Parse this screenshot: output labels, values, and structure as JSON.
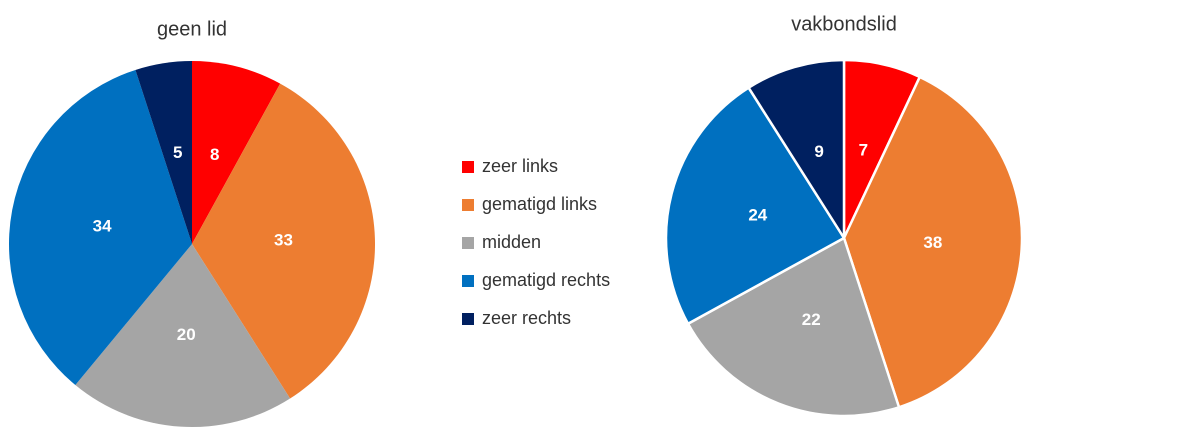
{
  "categories": [
    "zeer links",
    "gematigd links",
    "midden",
    "gematigd rechts",
    "zeer rechts"
  ],
  "colors": [
    "#ff0000",
    "#ed7d31",
    "#a5a5a5",
    "#0070c0",
    "#002060"
  ],
  "chart_data": [
    {
      "type": "pie",
      "title": "geen lid",
      "values": [
        8,
        33,
        20,
        34,
        5
      ]
    },
    {
      "type": "pie",
      "title": "vakbondslid",
      "values": [
        7,
        38,
        22,
        24,
        9
      ],
      "edgecolor": "#ffffff"
    }
  ]
}
